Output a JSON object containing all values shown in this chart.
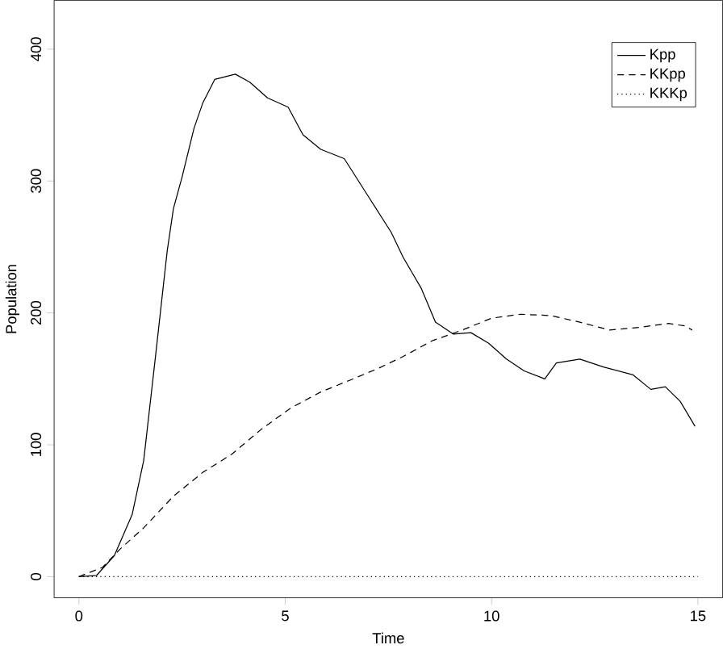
{
  "chart_data": {
    "type": "line",
    "xlabel": "Time",
    "ylabel": "Population",
    "xlim": [
      -0.6,
      15.6
    ],
    "ylim": [
      -16,
      437
    ],
    "xticks": [
      0,
      5,
      10,
      15
    ],
    "yticks": [
      0,
      100,
      200,
      300,
      400
    ],
    "grid": false,
    "legend": "top right",
    "marker": "none",
    "series": [
      {
        "name": "Kpp",
        "color": "#000000",
        "line_style": "solid",
        "x": [
          0,
          0.43,
          0.86,
          1.29,
          1.57,
          1.86,
          2.14,
          2.29,
          2.5,
          2.79,
          3.0,
          3.29,
          3.79,
          4.14,
          4.57,
          5.07,
          5.43,
          5.86,
          6.43,
          7.0,
          7.57,
          7.86,
          8.29,
          8.64,
          9.07,
          9.5,
          9.93,
          10.36,
          10.79,
          11.29,
          11.57,
          12.14,
          12.71,
          13.43,
          13.86,
          14.21,
          14.57,
          14.93
        ],
        "values": [
          0,
          1,
          16,
          47,
          88,
          168,
          247,
          279,
          303,
          340,
          359,
          377,
          381,
          375,
          363,
          356,
          335,
          324,
          317,
          289,
          261,
          242,
          219,
          193,
          184,
          185,
          177,
          165,
          156,
          150,
          162,
          165,
          159,
          153,
          142,
          144,
          133,
          114
        ]
      },
      {
        "name": "KKpp",
        "color": "#000000",
        "line_style": "dashed",
        "x": [
          0,
          0.57,
          1.0,
          1.57,
          2.29,
          3.0,
          3.71,
          4.43,
          5.14,
          5.86,
          6.57,
          7.26,
          7.86,
          8.57,
          9.29,
          10.0,
          10.71,
          11.43,
          12.14,
          12.86,
          13.57,
          14.29,
          14.71,
          14.86
        ],
        "values": [
          0,
          7,
          21,
          37,
          61,
          79,
          93,
          112,
          128,
          140,
          149,
          158,
          167,
          179,
          187,
          196,
          199,
          198,
          193,
          187,
          189,
          192,
          190,
          187
        ]
      },
      {
        "name": "KKKp",
        "color": "#000000",
        "line_style": "dotted",
        "x": [
          0,
          15
        ],
        "values": [
          0,
          0
        ]
      }
    ]
  }
}
